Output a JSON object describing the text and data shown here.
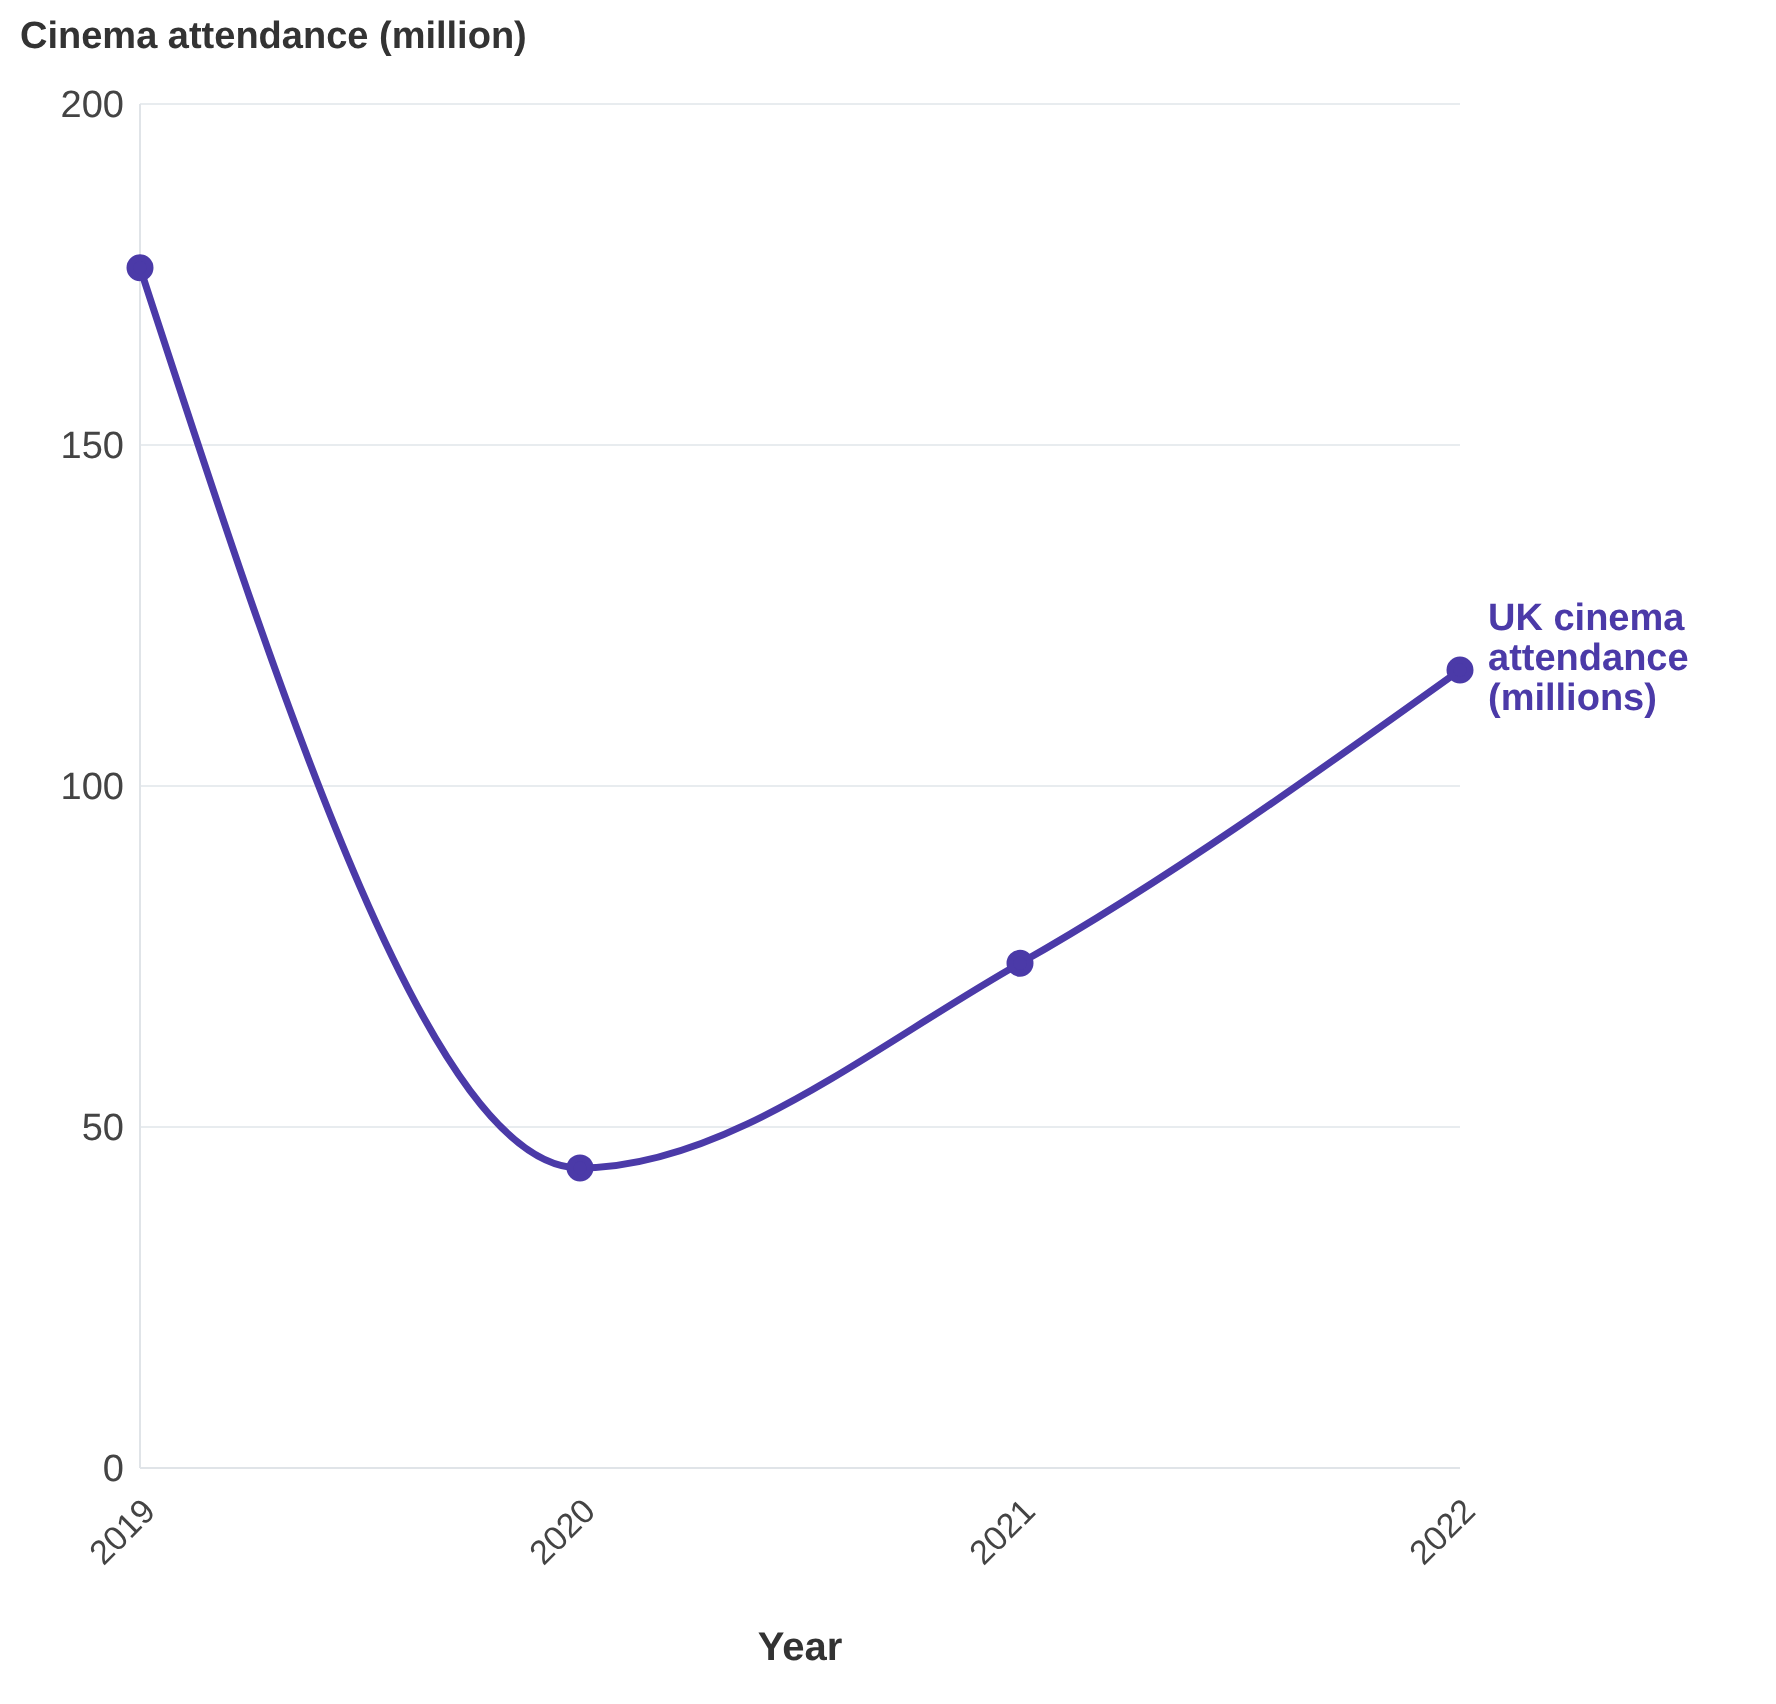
{
  "chart_data": {
    "type": "line",
    "ylabel": "Cinema attendance (million)",
    "xlabel": "Year",
    "categories": [
      "2019",
      "2020",
      "2021",
      "2022"
    ],
    "series": [
      {
        "name": "UK cinema attendance (millions)",
        "color": "#4b3aa8",
        "values": [
          176,
          44,
          74,
          117
        ]
      }
    ],
    "ylim": [
      0,
      200
    ],
    "yticks": [
      0,
      50,
      100,
      150,
      200
    ],
    "grid": "y",
    "marker": "circle",
    "line_style": "solid"
  }
}
